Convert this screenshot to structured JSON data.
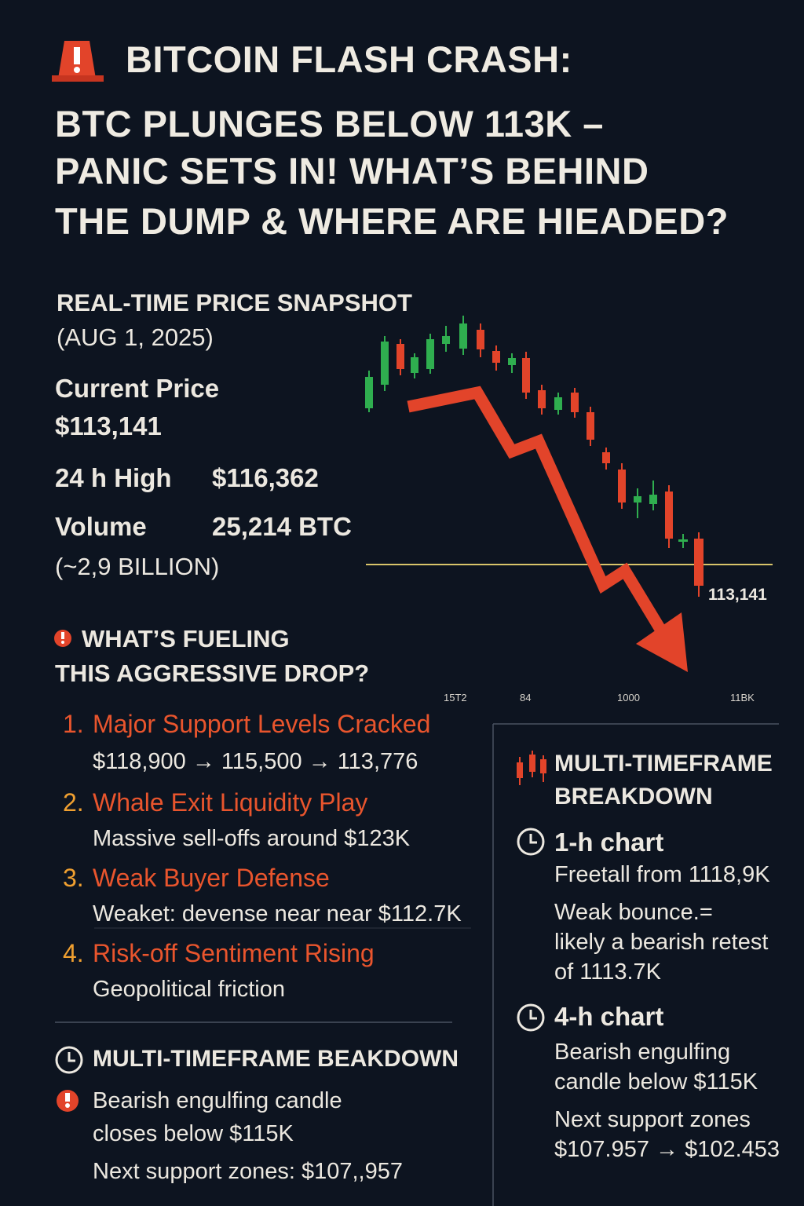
{
  "header": {
    "title_lines": [
      "BITCOIN FLASH CRASH:",
      "BTC PLUNGES BELOW 113K –",
      "PANIC SETS IN! WHAT’S BEHIND",
      "THE DUMP & WHERE ARE HIEADED?"
    ]
  },
  "snapshot": {
    "heading": "REAL-TIME PRICE SNAPSHOT",
    "date": "(AUG 1, 2025)",
    "current_label": "Current Price",
    "current_value": "$113,141",
    "high_label": "24 h High",
    "high_value": "$116,362",
    "volume_label": "Volume",
    "volume_value": "25,214 BTC",
    "volume_note": "(~2,9 BILLION)"
  },
  "illustration": {
    "price_label": "113,141",
    "axis_labels": [
      "15T2",
      "84",
      "1000",
      "11BK"
    ]
  },
  "fueling": {
    "heading_lines": [
      "WHAT’S FUELING",
      "THIS AGGRESSIVE DROP?"
    ],
    "items": [
      {
        "number": "1.",
        "title": "Major Support Levels Cracked",
        "detail": "$118,900 → 115,500 → 113,776"
      },
      {
        "number": "2.",
        "title": "Whale Exit Liquidity Play",
        "detail": "Massive sell-offs around $123K"
      },
      {
        "number": "3.",
        "title": "Weak Buyer Defense",
        "detail": "Weaket: devense near near $112.7K"
      },
      {
        "number": "4.",
        "title": "Risk-off Sentiment Rising",
        "detail": "Geopolitical friction"
      }
    ]
  },
  "bottom_left": {
    "heading": "MULTI-TIMEFRAME BEAKDOWN",
    "lines": [
      "Bearish engulfing candle",
      "closes below $115K",
      "Next support zones: $107,,957"
    ]
  },
  "right_panel": {
    "heading_lines": [
      "MULTI-TIMEFRAME",
      "BREAKDOWN"
    ],
    "sections": [
      {
        "title": "1-h chart",
        "lines": [
          "Freetall from 1118,9K",
          "Weak bounce.=",
          "likely a bearish retest",
          "of 1113.7K"
        ]
      },
      {
        "title": "4-h chart",
        "lines": [
          "Bearish engulfing",
          "candle below $115K",
          "Next support zones",
          "$107.957 → $102.453"
        ]
      }
    ]
  }
}
